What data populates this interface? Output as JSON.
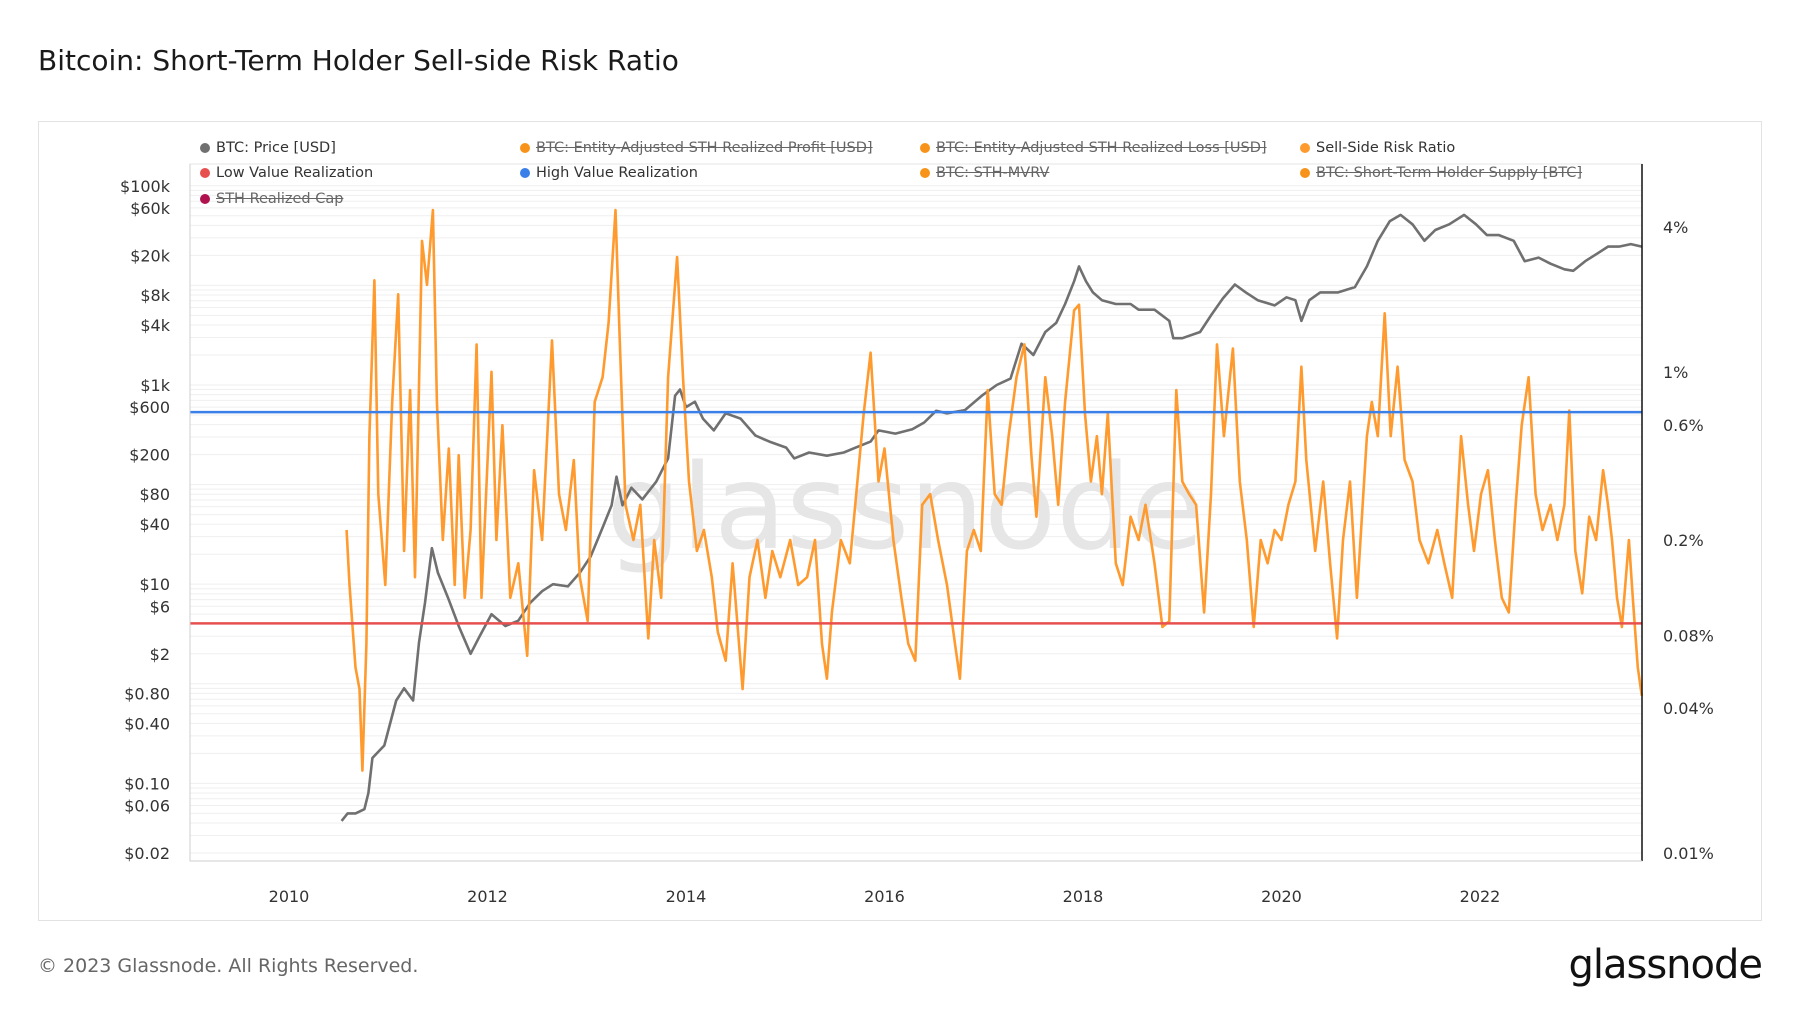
{
  "title": "Bitcoin: Short-Term Holder Sell-side Risk Ratio",
  "legend": [
    {
      "label": "BTC: Price [USD]",
      "color": "#707070",
      "active": true
    },
    {
      "label": "BTC: Entity-Adjusted STH Realized Profit [USD]",
      "color": "#f7931a",
      "active": false
    },
    {
      "label": "BTC: Entity-Adjusted STH Realized Loss [USD]",
      "color": "#f7931a",
      "active": false
    },
    {
      "label": "Sell-Side Risk Ratio",
      "color": "#ff9a2e",
      "active": true
    },
    {
      "label": "Low Value Realization",
      "color": "#e8504f",
      "active": true
    },
    {
      "label": "High Value Realization",
      "color": "#3b7fe8",
      "active": true
    },
    {
      "label": "BTC: STH-MVRV",
      "color": "#f7931a",
      "active": false
    },
    {
      "label": "BTC: Short-Term Holder Supply [BTC]",
      "color": "#f7931a",
      "active": false
    },
    {
      "label": "STH Realized Cap",
      "color": "#b0124f",
      "active": false
    }
  ],
  "watermark": "glassnode",
  "footer": {
    "copyright": "© 2023 Glassnode. All Rights Reserved.",
    "logo": "glassnode"
  },
  "chart_data": {
    "type": "line",
    "title": "Bitcoin: Short-Term Holder Sell-side Risk Ratio",
    "x_axis": {
      "range": [
        2009.0,
        2023.63
      ],
      "ticks": [
        "2010",
        "2012",
        "2014",
        "2016",
        "2018",
        "2020",
        "2022"
      ],
      "tick_values": [
        2010,
        2012,
        2014,
        2016,
        2018,
        2020,
        2022
      ]
    },
    "y_left": {
      "scale": "log",
      "range": [
        0.02,
        100000
      ],
      "ticks": [
        "$100k",
        "$60k",
        "$20k",
        "$8k",
        "$4k",
        "$1k",
        "$600",
        "$200",
        "$80",
        "$40",
        "$10",
        "$6",
        "$2",
        "$0.80",
        "$0.40",
        "$0.10",
        "$0.06",
        "$0.02"
      ],
      "tick_values": [
        100000,
        60000,
        20000,
        8000,
        4000,
        1000,
        600,
        200,
        80,
        40,
        10,
        6,
        2,
        0.8,
        0.4,
        0.1,
        0.06,
        0.02
      ]
    },
    "y_right": {
      "scale": "log",
      "unit": "%",
      "range": [
        0.01,
        7.3
      ],
      "ticks": [
        "4%",
        "1%",
        "0.6%",
        "0.2%",
        "0.08%",
        "0.04%",
        "0.01%"
      ],
      "tick_values": [
        4,
        1,
        0.6,
        0.2,
        0.08,
        0.04,
        0.01
      ]
    },
    "grid": true,
    "legend_position": "top",
    "thresholds": [
      {
        "name": "High Value Realization",
        "value": 0.68,
        "color": "#3b7fe8"
      },
      {
        "name": "Low Value Realization",
        "value": 0.09,
        "color": "#e8504f"
      }
    ],
    "series": [
      {
        "name": "BTC: Price [USD]",
        "axis": "left",
        "color": "#707070",
        "x": [
          2010.53,
          2010.59,
          2010.67,
          2010.76,
          2010.8,
          2010.84,
          2010.96,
          2011.08,
          2011.16,
          2011.25,
          2011.31,
          2011.37,
          2011.44,
          2011.5,
          2011.6,
          2011.71,
          2011.83,
          2011.92,
          2012.04,
          2012.18,
          2012.31,
          2012.43,
          2012.55,
          2012.66,
          2012.81,
          2012.93,
          2013.04,
          2013.16,
          2013.25,
          2013.3,
          2013.36,
          2013.45,
          2013.56,
          2013.7,
          2013.82,
          2013.89,
          2013.94,
          2014.0,
          2014.09,
          2014.17,
          2014.28,
          2014.4,
          2014.55,
          2014.7,
          2014.84,
          2015.01,
          2015.09,
          2015.24,
          2015.42,
          2015.59,
          2015.71,
          2015.86,
          2015.94,
          2016.11,
          2016.28,
          2016.4,
          2016.52,
          2016.63,
          2016.81,
          2016.98,
          2017.13,
          2017.27,
          2017.38,
          2017.5,
          2017.62,
          2017.73,
          2017.82,
          2017.91,
          2017.96,
          2018.03,
          2018.1,
          2018.19,
          2018.33,
          2018.48,
          2018.56,
          2018.72,
          2018.87,
          2018.91,
          2019.0,
          2019.18,
          2019.29,
          2019.41,
          2019.53,
          2019.64,
          2019.76,
          2019.93,
          2020.05,
          2020.14,
          2020.2,
          2020.28,
          2020.39,
          2020.57,
          2020.74,
          2020.86,
          2020.97,
          2021.09,
          2021.2,
          2021.32,
          2021.44,
          2021.55,
          2021.69,
          2021.84,
          2021.96,
          2022.07,
          2022.19,
          2022.34,
          2022.45,
          2022.59,
          2022.71,
          2022.85,
          2022.94,
          2023.06,
          2023.17,
          2023.29,
          2023.4,
          2023.52,
          2023.63
        ],
        "y": [
          0.042,
          0.05,
          0.05,
          0.055,
          0.08,
          0.18,
          0.24,
          0.68,
          0.9,
          0.68,
          2.6,
          6.5,
          23,
          13,
          7.4,
          3.8,
          2,
          3,
          5,
          3.8,
          4.3,
          6.5,
          8.5,
          10,
          9.5,
          13,
          19,
          37,
          62,
          120,
          62,
          93,
          71,
          107,
          183,
          780,
          900,
          600,
          680,
          460,
          350,
          520,
          460,
          310,
          270,
          235,
          183,
          210,
          195,
          210,
          235,
          270,
          350,
          325,
          360,
          420,
          550,
          520,
          560,
          780,
          1000,
          1160,
          2600,
          2000,
          3400,
          4200,
          6500,
          11000,
          15500,
          11000,
          8500,
          7100,
          6500,
          6500,
          5700,
          5700,
          4400,
          2950,
          2950,
          3400,
          5000,
          7400,
          10200,
          8500,
          7100,
          6300,
          7600,
          7100,
          4400,
          7100,
          8500,
          8500,
          9600,
          15500,
          28000,
          44000,
          51000,
          41000,
          28000,
          36000,
          41000,
          51000,
          41000,
          32000,
          32000,
          28000,
          17500,
          19000,
          16500,
          14500,
          14000,
          17500,
          20500,
          24500,
          24500,
          26000,
          24500
        ]
      },
      {
        "name": "Sell-Side Risk Ratio",
        "axis": "right",
        "color": "#ff9a2e",
        "x": [
          2010.58,
          2010.61,
          2010.67,
          2010.71,
          2010.74,
          2010.78,
          2010.81,
          2010.86,
          2010.9,
          2010.97,
          2011.04,
          2011.1,
          2011.16,
          2011.22,
          2011.27,
          2011.34,
          2011.39,
          2011.45,
          2011.49,
          2011.55,
          2011.61,
          2011.67,
          2011.71,
          2011.77,
          2011.83,
          2011.89,
          2011.94,
          2012.04,
          2012.09,
          2012.15,
          2012.23,
          2012.31,
          2012.4,
          2012.47,
          2012.55,
          2012.65,
          2012.72,
          2012.79,
          2012.87,
          2012.93,
          2013.01,
          2013.08,
          2013.16,
          2013.22,
          2013.29,
          2013.33,
          2013.39,
          2013.47,
          2013.54,
          2013.62,
          2013.68,
          2013.75,
          2013.82,
          2013.91,
          2013.97,
          2014.03,
          2014.11,
          2014.18,
          2014.26,
          2014.32,
          2014.4,
          2014.47,
          2014.57,
          2014.64,
          2014.72,
          2014.8,
          2014.87,
          2014.95,
          2015.05,
          2015.13,
          2015.22,
          2015.3,
          2015.37,
          2015.42,
          2015.47,
          2015.56,
          2015.65,
          2015.79,
          2015.86,
          2015.94,
          2016.0,
          2016.09,
          2016.17,
          2016.24,
          2016.31,
          2016.38,
          2016.46,
          2016.54,
          2016.63,
          2016.71,
          2016.76,
          2016.83,
          2016.9,
          2016.97,
          2017.04,
          2017.11,
          2017.18,
          2017.25,
          2017.33,
          2017.41,
          2017.48,
          2017.53,
          2017.62,
          2017.69,
          2017.75,
          2017.82,
          2017.91,
          2017.96,
          2018.02,
          2018.08,
          2018.14,
          2018.19,
          2018.25,
          2018.33,
          2018.4,
          2018.48,
          2018.56,
          2018.63,
          2018.72,
          2018.8,
          2018.87,
          2018.94,
          2019.0,
          2019.07,
          2019.14,
          2019.22,
          2019.29,
          2019.35,
          2019.42,
          2019.51,
          2019.58,
          2019.65,
          2019.72,
          2019.79,
          2019.86,
          2019.93,
          2020.0,
          2020.07,
          2020.14,
          2020.2,
          2020.25,
          2020.34,
          2020.42,
          2020.49,
          2020.56,
          2020.62,
          2020.69,
          2020.76,
          2020.86,
          2020.91,
          2020.97,
          2021.04,
          2021.1,
          2021.17,
          2021.24,
          2021.32,
          2021.39,
          2021.48,
          2021.57,
          2021.64,
          2021.72,
          2021.81,
          2021.88,
          2021.94,
          2022.01,
          2022.08,
          2022.15,
          2022.22,
          2022.29,
          2022.36,
          2022.42,
          2022.49,
          2022.56,
          2022.63,
          2022.71,
          2022.78,
          2022.85,
          2022.9,
          2022.96,
          2023.03,
          2023.1,
          2023.17,
          2023.24,
          2023.29,
          2023.33,
          2023.38,
          2023.43,
          2023.5,
          2023.54,
          2023.59,
          2023.63
        ],
        "y": [
          0.22,
          0.13,
          0.059,
          0.048,
          0.022,
          0.074,
          0.54,
          2.4,
          0.31,
          0.13,
          0.75,
          2.1,
          0.18,
          0.84,
          0.14,
          3.5,
          2.3,
          4.7,
          0.75,
          0.2,
          0.48,
          0.13,
          0.45,
          0.115,
          0.22,
          1.3,
          0.115,
          1.0,
          0.2,
          0.6,
          0.115,
          0.16,
          0.066,
          0.39,
          0.2,
          1.35,
          0.31,
          0.22,
          0.43,
          0.14,
          0.092,
          0.75,
          0.95,
          1.6,
          4.7,
          1.45,
          0.28,
          0.2,
          0.28,
          0.078,
          0.2,
          0.115,
          0.95,
          3.0,
          0.95,
          0.35,
          0.18,
          0.22,
          0.14,
          0.083,
          0.063,
          0.16,
          0.048,
          0.14,
          0.2,
          0.115,
          0.18,
          0.14,
          0.2,
          0.13,
          0.14,
          0.2,
          0.074,
          0.053,
          0.1,
          0.2,
          0.16,
          0.67,
          1.2,
          0.35,
          0.48,
          0.2,
          0.115,
          0.074,
          0.063,
          0.28,
          0.31,
          0.2,
          0.13,
          0.074,
          0.053,
          0.18,
          0.22,
          0.18,
          0.84,
          0.31,
          0.28,
          0.54,
          0.95,
          1.3,
          0.45,
          0.25,
          0.95,
          0.54,
          0.28,
          0.75,
          1.8,
          1.9,
          0.67,
          0.35,
          0.54,
          0.31,
          0.67,
          0.16,
          0.13,
          0.25,
          0.2,
          0.28,
          0.16,
          0.087,
          0.092,
          0.84,
          0.35,
          0.31,
          0.28,
          0.1,
          0.31,
          1.3,
          0.54,
          1.25,
          0.35,
          0.2,
          0.087,
          0.2,
          0.16,
          0.22,
          0.2,
          0.28,
          0.35,
          1.05,
          0.43,
          0.18,
          0.35,
          0.16,
          0.078,
          0.2,
          0.35,
          0.115,
          0.54,
          0.75,
          0.54,
          1.75,
          0.54,
          1.05,
          0.43,
          0.35,
          0.2,
          0.16,
          0.22,
          0.16,
          0.115,
          0.54,
          0.28,
          0.18,
          0.31,
          0.39,
          0.2,
          0.115,
          0.1,
          0.28,
          0.6,
          0.95,
          0.31,
          0.22,
          0.28,
          0.2,
          0.28,
          0.69,
          0.18,
          0.12,
          0.25,
          0.2,
          0.39,
          0.28,
          0.2,
          0.115,
          0.087,
          0.2,
          0.115,
          0.059,
          0.045
        ]
      }
    ]
  }
}
